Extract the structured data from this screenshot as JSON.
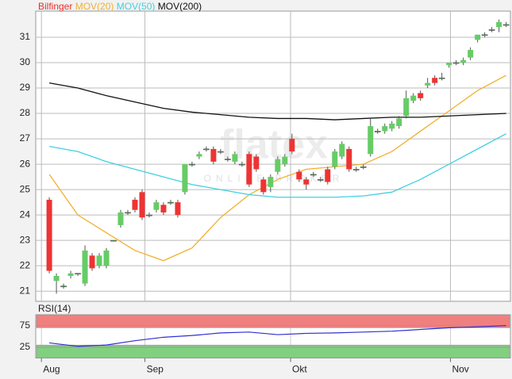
{
  "chart_data": {
    "type": "candlestick",
    "legend": [
      {
        "name": "Bilfinger",
        "color": "#e8302a"
      },
      {
        "name": "MOV(20)",
        "color": "#f0b030"
      },
      {
        "name": "MOV(50)",
        "color": "#40d0e0"
      },
      {
        "name": "MOV(200)",
        "color": "#111111"
      }
    ],
    "watermark": [
      "flatex",
      "ONLINE BROKER"
    ],
    "xlim": [
      -1.9,
      64.6
    ],
    "xticks": [
      {
        "value": -1.1,
        "label": "Aug"
      },
      {
        "value": 13.4,
        "label": "Sep"
      },
      {
        "value": 33.8,
        "label": "Okt"
      },
      {
        "value": 56.2,
        "label": "Nov"
      }
    ],
    "ylim": [
      20.6,
      32.03
    ],
    "yticks": [
      21,
      22,
      23,
      24,
      25,
      26,
      27,
      28,
      29,
      30,
      31
    ],
    "grid": true,
    "candles": {
      "up_color": "#66cc66",
      "down_color": "#ee3333",
      "x": [
        0,
        1,
        2,
        3,
        4,
        5,
        6,
        7,
        8,
        9,
        10,
        11,
        12,
        13,
        14,
        15,
        16,
        17,
        18,
        19,
        20,
        21,
        22,
        23,
        24,
        25,
        26,
        27,
        28,
        29,
        30,
        31,
        32,
        33,
        34,
        35,
        36,
        37,
        38,
        39,
        40,
        41,
        42,
        43,
        44,
        45,
        46,
        47,
        48,
        49,
        50,
        51,
        52,
        53,
        54,
        55,
        56,
        57,
        58,
        59,
        60,
        61,
        62,
        63,
        64
      ],
      "ohlc": [
        [
          24.6,
          24.7,
          21.7,
          21.8
        ],
        [
          21.4,
          21.7,
          20.9,
          21.6
        ],
        [
          21.2,
          21.3,
          21.1,
          21.2
        ],
        [
          21.6,
          21.8,
          21.5,
          21.7
        ],
        [
          21.7,
          21.7,
          21.6,
          21.7
        ],
        [
          21.3,
          22.8,
          21.2,
          22.6
        ],
        [
          22.4,
          22.5,
          21.8,
          21.9
        ],
        [
          22.0,
          22.5,
          21.9,
          22.4
        ],
        [
          22.0,
          22.7,
          21.9,
          22.6
        ],
        [
          23.0,
          23.0,
          23.0,
          23.0
        ],
        [
          23.6,
          24.2,
          23.5,
          24.1
        ],
        [
          24.1,
          24.2,
          24.0,
          24.1
        ],
        [
          24.6,
          24.7,
          24.1,
          24.2
        ],
        [
          24.9,
          25.0,
          23.8,
          23.9
        ],
        [
          24.0,
          24.1,
          23.9,
          24.0
        ],
        [
          24.2,
          24.6,
          24.1,
          24.5
        ],
        [
          24.4,
          24.5,
          24.0,
          24.1
        ],
        [
          24.5,
          24.6,
          24.4,
          24.5
        ],
        [
          24.5,
          24.6,
          23.9,
          24.0
        ],
        [
          24.9,
          26.0,
          24.8,
          26.0
        ],
        [
          26.0,
          26.1,
          25.9,
          26.0
        ],
        [
          26.3,
          26.5,
          26.2,
          26.4
        ],
        [
          26.6,
          26.7,
          26.5,
          26.6
        ],
        [
          26.6,
          26.7,
          26.0,
          26.1
        ],
        [
          26.5,
          26.6,
          26.4,
          26.5
        ],
        [
          26.2,
          26.3,
          26.1,
          26.2
        ],
        [
          26.1,
          26.5,
          26.0,
          26.4
        ],
        [
          26.0,
          26.1,
          25.9,
          26.0
        ],
        [
          26.4,
          26.5,
          25.1,
          25.2
        ],
        [
          26.3,
          26.4,
          25.7,
          25.8
        ],
        [
          25.4,
          25.5,
          24.8,
          24.9
        ],
        [
          25.1,
          25.6,
          24.9,
          25.5
        ],
        [
          25.7,
          26.3,
          25.6,
          26.2
        ],
        [
          26.0,
          26.4,
          25.9,
          26.3
        ],
        [
          27.0,
          27.2,
          26.4,
          26.5
        ],
        [
          25.7,
          25.8,
          25.3,
          25.4
        ],
        [
          25.4,
          25.5,
          25.0,
          25.2
        ],
        [
          25.6,
          25.7,
          25.5,
          25.6
        ],
        [
          25.4,
          25.5,
          25.3,
          25.4
        ],
        [
          25.8,
          25.9,
          25.2,
          25.3
        ],
        [
          25.9,
          26.6,
          25.8,
          26.5
        ],
        [
          26.3,
          26.9,
          26.2,
          26.8
        ],
        [
          26.6,
          26.7,
          25.7,
          25.8
        ],
        [
          25.8,
          25.9,
          25.7,
          25.8
        ],
        [
          25.9,
          26.0,
          25.8,
          25.9
        ],
        [
          26.4,
          27.8,
          26.3,
          27.5
        ],
        [
          27.3,
          27.4,
          27.2,
          27.3
        ],
        [
          27.3,
          27.6,
          27.2,
          27.5
        ],
        [
          27.4,
          27.7,
          27.3,
          27.6
        ],
        [
          27.5,
          27.9,
          27.4,
          27.8
        ],
        [
          27.9,
          28.9,
          27.8,
          28.6
        ],
        [
          28.5,
          28.8,
          28.4,
          28.7
        ],
        [
          28.8,
          28.9,
          28.5,
          28.6
        ],
        [
          29.1,
          29.4,
          29.0,
          29.2
        ],
        [
          29.4,
          29.5,
          29.1,
          29.2
        ],
        [
          29.4,
          29.6,
          29.3,
          29.4
        ],
        [
          29.9,
          30.0,
          29.8,
          30.0
        ],
        [
          30.0,
          30.1,
          29.9,
          30.0
        ],
        [
          30.0,
          30.2,
          29.9,
          30.1
        ],
        [
          30.2,
          30.6,
          30.1,
          30.5
        ],
        [
          30.9,
          31.1,
          30.8,
          31.1
        ],
        [
          31.1,
          31.2,
          31.0,
          31.1
        ],
        [
          31.3,
          31.4,
          31.2,
          31.3
        ],
        [
          31.4,
          31.7,
          31.2,
          31.6
        ],
        [
          31.5,
          31.6,
          31.4,
          31.5
        ]
      ]
    },
    "series": [
      {
        "name": "MOV(20)",
        "color": "#f0b030",
        "x": [
          0,
          4,
          8,
          12,
          16,
          20,
          24,
          28,
          32,
          36,
          40,
          44,
          48,
          52,
          56,
          60,
          64
        ],
        "values": [
          25.6,
          24.0,
          23.3,
          22.6,
          22.2,
          22.7,
          23.9,
          24.8,
          25.4,
          25.8,
          25.9,
          26.0,
          26.5,
          27.3,
          28.1,
          28.9,
          29.5
        ]
      },
      {
        "name": "MOV(50)",
        "color": "#40d0e0",
        "x": [
          0,
          4,
          8,
          12,
          16,
          20,
          24,
          28,
          32,
          36,
          40,
          44,
          48,
          52,
          56,
          60,
          64
        ],
        "values": [
          26.7,
          26.5,
          26.1,
          25.8,
          25.5,
          25.2,
          25.0,
          24.8,
          24.7,
          24.7,
          24.7,
          24.75,
          24.9,
          25.4,
          26.0,
          26.6,
          27.2
        ]
      },
      {
        "name": "MOV(200)",
        "color": "#111111",
        "x": [
          0,
          4,
          8,
          12,
          16,
          20,
          24,
          28,
          32,
          36,
          40,
          44,
          48,
          52,
          56,
          60,
          64
        ],
        "values": [
          29.2,
          29.0,
          28.7,
          28.45,
          28.2,
          28.05,
          27.95,
          27.85,
          27.8,
          27.8,
          27.75,
          27.8,
          27.85,
          27.85,
          27.9,
          27.95,
          28.0
        ]
      }
    ],
    "rsi": {
      "title": "RSI(14)",
      "color": "#3030d0",
      "ylim": [
        0,
        100
      ],
      "yticks": [
        25,
        75
      ],
      "bands": [
        {
          "from": 70,
          "to": 100,
          "color": "#f08080"
        },
        {
          "from": 0,
          "to": 30,
          "color": "#80d080"
        }
      ],
      "x": [
        0,
        4,
        8,
        12,
        16,
        20,
        24,
        28,
        32,
        36,
        40,
        44,
        48,
        52,
        56,
        60,
        64
      ],
      "values": [
        35,
        27,
        30,
        40,
        48,
        52,
        58,
        60,
        54,
        57,
        58,
        60,
        62,
        66,
        70,
        72,
        75
      ]
    }
  }
}
